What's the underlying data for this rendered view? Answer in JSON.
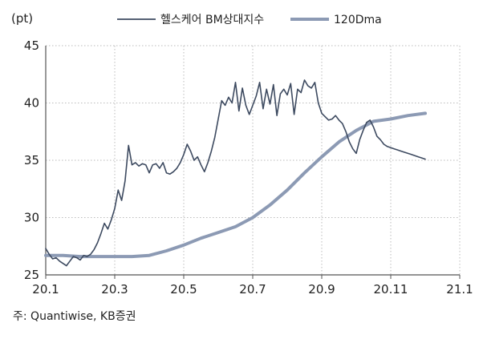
{
  "chart_data": {
    "type": "line",
    "unit_label": "(pt)",
    "xlabel": "",
    "ylabel": "",
    "x_ticks": [
      "20.1",
      "20.3",
      "20.5",
      "20.7",
      "20.9",
      "20.11",
      "21.1"
    ],
    "xlim": [
      0,
      12
    ],
    "ylim": [
      25,
      45
    ],
    "y_ticks": [
      25,
      30,
      35,
      40,
      45
    ],
    "grid": true,
    "legend_position": "top",
    "colors": {
      "index": "#3d4a60",
      "ma": "#8c9ab4",
      "axis": "#555555",
      "grid": "#bbbbbb"
    },
    "series": [
      {
        "name": "헬스케어 BM상대지수",
        "color": "#3d4a60",
        "x": [
          0.0,
          0.1,
          0.2,
          0.3,
          0.4,
          0.5,
          0.6,
          0.7,
          0.8,
          0.9,
          1.0,
          1.1,
          1.2,
          1.3,
          1.4,
          1.5,
          1.6,
          1.7,
          1.8,
          1.9,
          2.0,
          2.1,
          2.2,
          2.3,
          2.4,
          2.5,
          2.6,
          2.7,
          2.8,
          2.9,
          3.0,
          3.1,
          3.2,
          3.3,
          3.4,
          3.5,
          3.6,
          3.7,
          3.8,
          3.9,
          4.0,
          4.1,
          4.2,
          4.3,
          4.4,
          4.5,
          4.6,
          4.7,
          4.8,
          4.9,
          5.0,
          5.1,
          5.2,
          5.3,
          5.4,
          5.5,
          5.6,
          5.7,
          5.8,
          5.9,
          6.0,
          6.1,
          6.2,
          6.3,
          6.4,
          6.5,
          6.6,
          6.7,
          6.8,
          6.9,
          7.0,
          7.1,
          7.2,
          7.3,
          7.4,
          7.5,
          7.6,
          7.7,
          7.8,
          7.9,
          8.0,
          8.1,
          8.2,
          8.3,
          8.4,
          8.5,
          8.6,
          8.7,
          8.8,
          8.9,
          9.0,
          9.1,
          9.2,
          9.3,
          9.4,
          9.5,
          9.6,
          9.7,
          9.8,
          9.9,
          10.0,
          10.1,
          10.2,
          10.3,
          10.4,
          10.5,
          10.6,
          10.7,
          10.8,
          10.9,
          11.0
        ],
        "values": [
          27.3,
          26.8,
          26.4,
          26.5,
          26.2,
          26.0,
          25.8,
          26.2,
          26.6,
          26.5,
          26.3,
          26.7,
          26.6,
          26.8,
          27.2,
          27.8,
          28.6,
          29.5,
          29.0,
          29.8,
          30.8,
          32.4,
          31.5,
          33.2,
          36.3,
          34.6,
          34.8,
          34.5,
          34.7,
          34.6,
          33.9,
          34.6,
          34.7,
          34.3,
          34.8,
          33.9,
          33.8,
          34.0,
          34.3,
          34.8,
          35.5,
          36.4,
          35.8,
          35.0,
          35.3,
          34.6,
          34.0,
          34.8,
          35.8,
          37.0,
          38.6,
          40.2,
          39.8,
          40.5,
          40.0,
          41.8,
          39.3,
          41.3,
          39.8,
          39.0,
          39.8,
          40.6,
          41.8,
          39.5,
          41.2,
          39.9,
          41.6,
          38.9,
          40.8,
          41.2,
          40.7,
          41.7,
          39.0,
          41.2,
          40.9,
          42.0,
          41.5,
          41.3,
          41.8,
          40.0,
          39.1,
          38.8,
          38.5,
          38.6,
          38.9,
          38.5,
          38.2,
          37.5,
          36.6,
          36.0,
          35.6,
          36.8,
          37.6,
          38.3,
          38.5,
          37.9,
          37.1,
          36.8,
          36.4,
          36.2,
          36.1,
          36.0,
          35.9,
          35.8,
          35.7,
          35.6,
          35.5,
          35.4,
          35.3,
          35.2,
          35.1
        ]
      },
      {
        "name": "120Dma",
        "color": "#8c9ab4",
        "x": [
          0.0,
          0.5,
          1.0,
          1.5,
          2.0,
          2.5,
          3.0,
          3.5,
          4.0,
          4.5,
          5.0,
          5.5,
          6.0,
          6.5,
          7.0,
          7.5,
          8.0,
          8.5,
          9.0,
          9.5,
          10.0,
          10.5,
          11.0
        ],
        "values": [
          26.7,
          26.7,
          26.6,
          26.6,
          26.6,
          26.6,
          26.7,
          27.1,
          27.6,
          28.2,
          28.7,
          29.2,
          30.0,
          31.1,
          32.4,
          33.9,
          35.3,
          36.6,
          37.6,
          38.4,
          38.6,
          38.9,
          39.1
        ]
      }
    ],
    "source_note": "주: Quantiwise, KB증권"
  }
}
